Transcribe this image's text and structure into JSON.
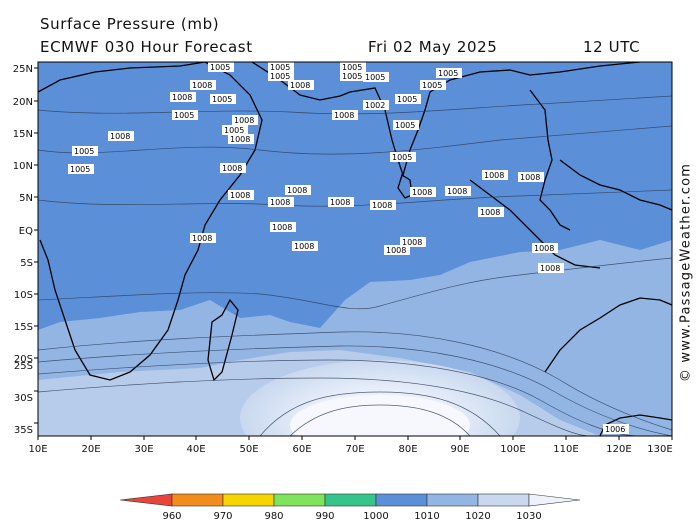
{
  "header": {
    "title": "Surface Pressure (mb)",
    "subtitle": "ECMWF 030 Hour Forecast",
    "date": "Fri 02 May 2025",
    "time": "12 UTC"
  },
  "credit": "© www.PassageWeather.com",
  "lat_labels": [
    "25N",
    "20N",
    "15N",
    "10N",
    "5N",
    "EQ",
    "5S",
    "10S",
    "15S",
    "20S",
    "25S",
    "30S",
    "35S"
  ],
  "lon_labels": [
    "10E",
    "20E",
    "30E",
    "40E",
    "50E",
    "60E",
    "70E",
    "80E",
    "90E",
    "100E",
    "110E",
    "120E",
    "130E"
  ],
  "colorbar": {
    "ticks": [
      "960",
      "970",
      "980",
      "990",
      "1000",
      "1010",
      "1020",
      "1030"
    ],
    "colors": [
      "#e8443a",
      "#f28c1c",
      "#f5d400",
      "#7fe35c",
      "#35c48a",
      "#5b8fd8",
      "#93b5e3",
      "#c9d8ef",
      "#eef2fa"
    ]
  },
  "pressure_labels": [
    {
      "text": "1005"
    },
    {
      "text": "1005"
    },
    {
      "text": "1005"
    },
    {
      "text": "1008"
    },
    {
      "text": "1005"
    },
    {
      "text": "1005"
    },
    {
      "text": "1008"
    },
    {
      "text": "1005"
    },
    {
      "text": "1008"
    },
    {
      "text": "1008"
    },
    {
      "text": "1005"
    },
    {
      "text": "1005"
    },
    {
      "text": "1005"
    },
    {
      "text": "1005"
    },
    {
      "text": "1008"
    },
    {
      "text": "1008"
    },
    {
      "text": "1008"
    },
    {
      "text": "1005"
    },
    {
      "text": "1005"
    },
    {
      "text": "1008"
    },
    {
      "text": "1008"
    },
    {
      "text": "1008"
    },
    {
      "text": "1008"
    },
    {
      "text": "1008"
    },
    {
      "text": "1008"
    },
    {
      "text": "1008"
    },
    {
      "text": "1008"
    },
    {
      "text": "1008"
    },
    {
      "text": "1008"
    },
    {
      "text": "1008"
    },
    {
      "text": "1005"
    },
    {
      "text": "1002"
    },
    {
      "text": "1005"
    },
    {
      "text": "1005"
    },
    {
      "text": "1005"
    },
    {
      "text": "1008"
    },
    {
      "text": "1008"
    },
    {
      "text": "1008"
    },
    {
      "text": "1008"
    },
    {
      "text": "1008"
    },
    {
      "text": "1008"
    },
    {
      "text": "1008"
    },
    {
      "text": "1006"
    }
  ]
}
